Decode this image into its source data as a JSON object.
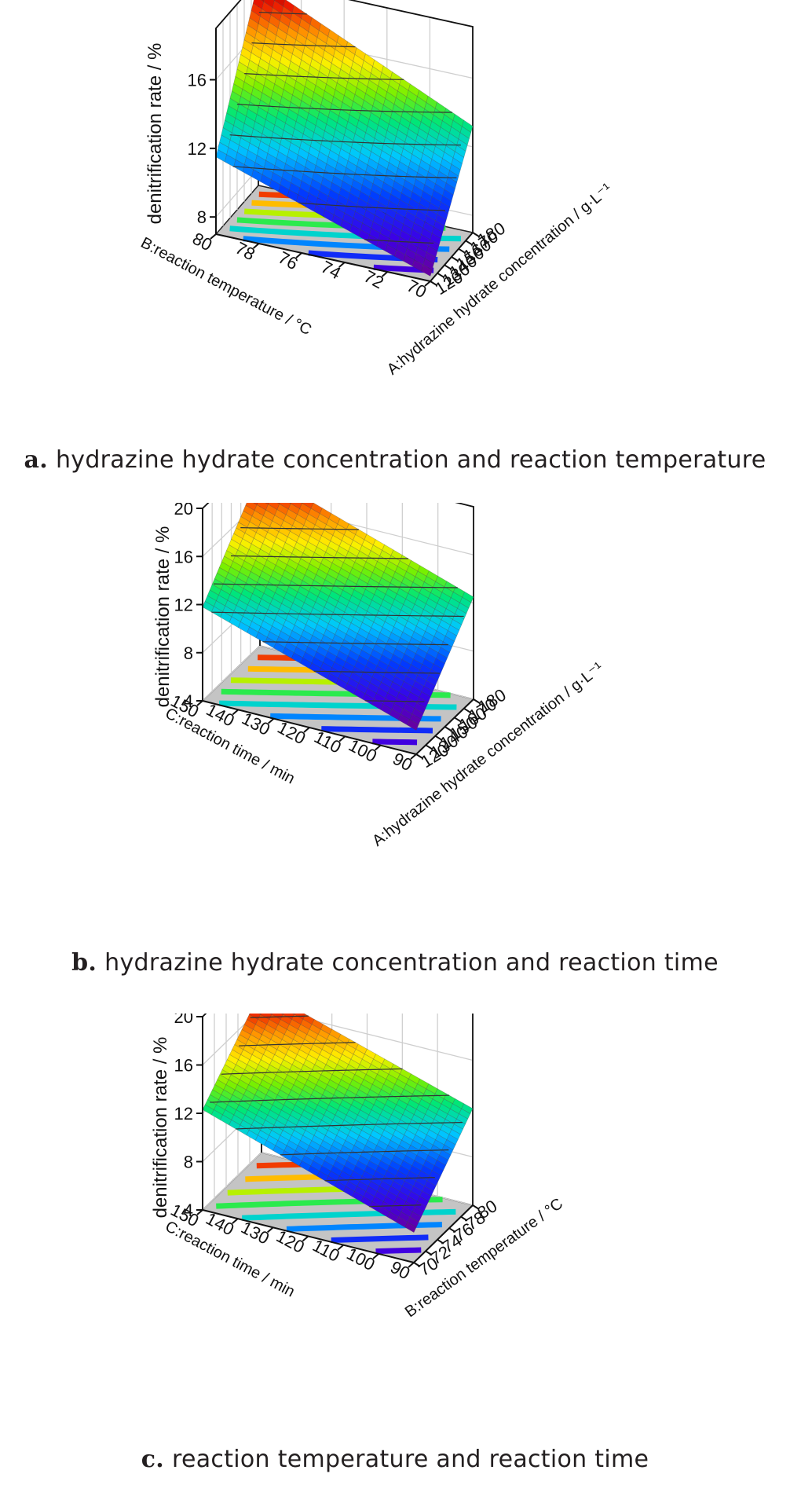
{
  "chart_data": [
    {
      "type": "surface3d",
      "panel_label": "a.",
      "caption": "hydrazine hydrate concentration and reaction temperature",
      "zlabel": "denitrification rate / %",
      "z_ticks": [
        "8",
        "12",
        "16"
      ],
      "zlim": [
        7,
        19
      ],
      "x_axis": {
        "label": "A:hydrazine hydrate concentration / g·L⁻¹",
        "ticks": [
          "120",
          "130",
          "140",
          "150",
          "160",
          "170",
          "180"
        ],
        "range": [
          120,
          180
        ]
      },
      "y_axis": {
        "label": "B:reaction temperature / °C",
        "ticks": [
          "70",
          "72",
          "74",
          "76",
          "78",
          "80"
        ],
        "range": [
          70,
          80
        ]
      },
      "corner_values": {
        "min_corner": 7.3,
        "max_corner": 18.9,
        "side_left": 11.5,
        "side_right": 13.2
      }
    },
    {
      "type": "surface3d",
      "panel_label": "b.",
      "caption": "hydrazine hydrate concentration and reaction time",
      "zlabel": "denitrification rate / %",
      "z_ticks": [
        "4",
        "8",
        "12",
        "16",
        "20"
      ],
      "zlim": [
        4,
        20
      ],
      "x_axis": {
        "label": "A:hydrazine hydrate concentration / g·L⁻¹",
        "ticks": [
          "120",
          "130",
          "140",
          "150",
          "160",
          "170",
          "180"
        ],
        "range": [
          120,
          180
        ]
      },
      "y_axis": {
        "label": "C:reaction time / min",
        "ticks": [
          "90",
          "100",
          "110",
          "120",
          "130",
          "140",
          "150"
        ],
        "range": [
          90,
          150
        ]
      },
      "corner_values": {
        "min_corner": 6.0,
        "max_corner": 18.5,
        "side_left": 11.8,
        "side_right": 12.5
      }
    },
    {
      "type": "surface3d",
      "panel_label": "c.",
      "caption": "reaction temperature and reaction time",
      "zlabel": "denitrification rate / %",
      "z_ticks": [
        "4",
        "8",
        "12",
        "16",
        "20"
      ],
      "zlim": [
        4,
        20
      ],
      "x_axis": {
        "label": "B:reaction temperature / °C",
        "ticks": [
          "70",
          "72",
          "74",
          "76",
          "78",
          "80"
        ],
        "range": [
          70,
          80
        ]
      },
      "y_axis": {
        "label": "C:reaction time / min",
        "ticks": [
          "90",
          "100",
          "110",
          "120",
          "130",
          "140",
          "150"
        ],
        "range": [
          90,
          150
        ]
      },
      "corner_values": {
        "min_corner": 6.5,
        "max_corner": 17.5,
        "side_left": 12.3,
        "side_right": 12.0
      }
    }
  ]
}
